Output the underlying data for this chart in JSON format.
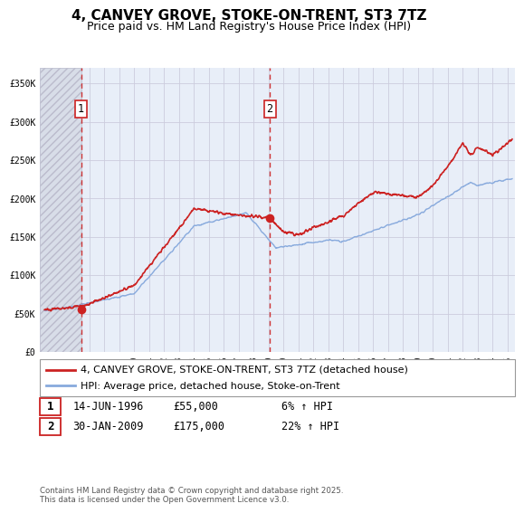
{
  "title": "4, CANVEY GROVE, STOKE-ON-TRENT, ST3 7TZ",
  "subtitle": "Price paid vs. HM Land Registry's House Price Index (HPI)",
  "ylim": [
    0,
    370000
  ],
  "xlim_start": 1993.7,
  "xlim_end": 2025.5,
  "yticks": [
    0,
    50000,
    100000,
    150000,
    200000,
    250000,
    300000,
    350000
  ],
  "ytick_labels": [
    "£0",
    "£50K",
    "£100K",
    "£150K",
    "£200K",
    "£250K",
    "£300K",
    "£350K"
  ],
  "xticks": [
    1994,
    1995,
    1996,
    1997,
    1998,
    1999,
    2000,
    2001,
    2002,
    2003,
    2004,
    2005,
    2006,
    2007,
    2008,
    2009,
    2010,
    2011,
    2012,
    2013,
    2014,
    2015,
    2016,
    2017,
    2018,
    2019,
    2020,
    2021,
    2022,
    2023,
    2024,
    2025
  ],
  "purchase1_date": 1996.45,
  "purchase1_price": 55000,
  "purchase2_date": 2009.08,
  "purchase2_price": 175000,
  "line1_color": "#cc2222",
  "line2_color": "#88aadd",
  "vline_color": "#cc2222",
  "marker_color": "#cc2222",
  "grid_color": "#ccccdd",
  "plot_bg_color": "#e8eef8",
  "fig_bg_color": "#ffffff",
  "legend1_text": "4, CANVEY GROVE, STOKE-ON-TRENT, ST3 7TZ (detached house)",
  "legend2_text": "HPI: Average price, detached house, Stoke-on-Trent",
  "table_row1": [
    "1",
    "14-JUN-1996",
    "£55,000",
    "6% ↑ HPI"
  ],
  "table_row2": [
    "2",
    "30-JAN-2009",
    "£175,000",
    "22% ↑ HPI"
  ],
  "footer": "Contains HM Land Registry data © Crown copyright and database right 2025.\nThis data is licensed under the Open Government Licence v3.0.",
  "title_fontsize": 11,
  "subtitle_fontsize": 9,
  "tick_fontsize": 7,
  "legend_fontsize": 8,
  "table_fontsize": 8.5
}
